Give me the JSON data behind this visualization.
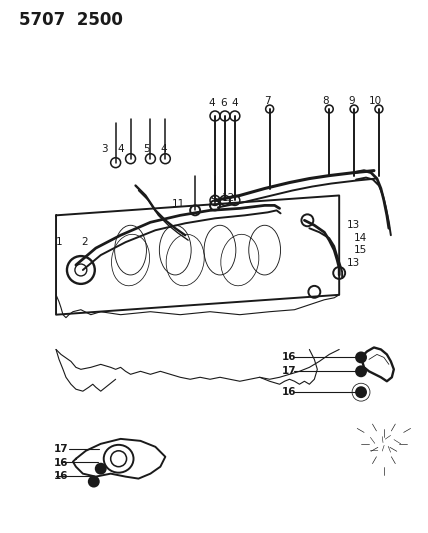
{
  "title": "5707  2500",
  "bg_color": "#ffffff",
  "line_color": "#1a1a1a",
  "fig_width": 4.28,
  "fig_height": 5.33,
  "dpi": 100,
  "lw_main": 1.4,
  "lw_thin": 0.8,
  "lw_thick": 2.2,
  "label_fontsize": 7.5,
  "title_fontsize": 12
}
